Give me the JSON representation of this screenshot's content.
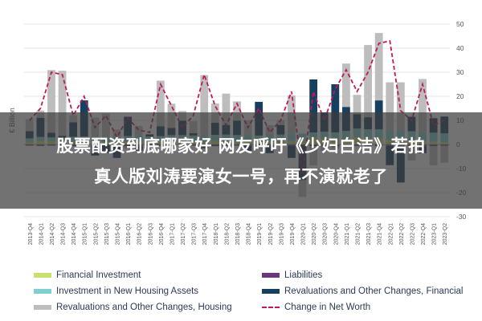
{
  "chart_data": {
    "type": "bar",
    "ylabel": "€ Billion",
    "ylim": [
      -30,
      50
    ],
    "yticks": [
      50,
      40,
      30,
      20,
      10,
      0,
      -10,
      -20,
      -30
    ],
    "categories": [
      "2013-Q4",
      "2014-Q1",
      "2014-Q2",
      "2014-Q3",
      "2014-Q4",
      "2015-Q1",
      "2015-Q2",
      "2015-Q3",
      "2015-Q4",
      "2016-Q1",
      "2016-Q2",
      "2016-Q3",
      "2016-Q4",
      "2017-Q1",
      "2017-Q2",
      "2017-Q3",
      "2017-Q4",
      "2018-Q1",
      "2018-Q2",
      "2018-Q3",
      "2018-Q4",
      "2019-Q1",
      "2019-Q2",
      "2019-Q3",
      "2019-Q4",
      "2020-Q1",
      "2020-Q2",
      "2020-Q3",
      "2020-Q4",
      "2021-Q1",
      "2021-Q2",
      "2021-Q3",
      "2021-Q4",
      "2022-Q1",
      "2022-Q2",
      "2022-Q3",
      "2022-Q4",
      "2023-Q1",
      "2023-Q2"
    ],
    "series": [
      {
        "name": "Financial Investment",
        "color": "#c8e06e",
        "values": [
          1,
          1.5,
          1.2,
          1,
          1.4,
          1.6,
          1.3,
          1,
          1.2,
          1.4,
          1.5,
          1.3,
          1.2,
          1.5,
          1.4,
          1.3,
          1.2,
          1.5,
          1.4,
          1.3,
          1.2,
          1,
          1.1,
          1.3,
          1.4,
          2,
          3,
          2.5,
          1.8,
          2.2,
          3,
          2.8,
          2.5,
          1.8,
          1.6,
          1.4,
          1.2,
          1.1,
          1
        ]
      },
      {
        "name": "Liabilities",
        "color": "#6b3580",
        "values": [
          -0.5,
          -0.6,
          -0.5,
          -0.6,
          -0.7,
          -0.5,
          -0.6,
          -0.5,
          -0.6,
          -0.7,
          -0.6,
          -0.5,
          -0.6,
          -0.7,
          -0.6,
          -0.5,
          -0.6,
          -0.7,
          -0.6,
          -0.5,
          -0.6,
          -0.7,
          -0.6,
          -0.5,
          -0.6,
          -0.8,
          -0.7,
          -0.6,
          -0.8,
          -0.7,
          -0.6,
          -0.8,
          -0.7,
          -0.6,
          -0.8,
          -0.7,
          -0.6,
          -0.7,
          -0.6
        ]
      },
      {
        "name": "Investment in New Housing Assets",
        "color": "#7ecfd0",
        "values": [
          1.5,
          1.6,
          1.7,
          1.6,
          1.8,
          1.7,
          1.9,
          1.8,
          2,
          2.1,
          2.2,
          2,
          2.3,
          2.4,
          2.5,
          2.4,
          2.6,
          2.5,
          2.7,
          2.6,
          2.8,
          2.7,
          2.9,
          2.8,
          3,
          2.5,
          2,
          2.8,
          3.2,
          3.4,
          3.6,
          3.5,
          3.8,
          4,
          4.2,
          4.1,
          4,
          3.8,
          3.6
        ]
      },
      {
        "name": "Revaluations and Other Changes, Financial",
        "color": "#173f5f",
        "values": [
          3,
          8,
          2,
          1,
          6,
          15,
          -4,
          -3,
          -5,
          8,
          -2,
          1,
          4,
          3,
          6,
          1,
          -1,
          5,
          4,
          6,
          -2,
          14,
          -3,
          4,
          -5,
          -14,
          22,
          8,
          20,
          10,
          6,
          5,
          12,
          -8,
          -15,
          6,
          -3,
          6,
          7
        ]
      },
      {
        "name": "Revaluations and Other Changes, Housing",
        "color": "#bdbdbd",
        "values": [
          5,
          3,
          26,
          27,
          3,
          -2,
          8,
          10,
          3,
          -1,
          4,
          0,
          19,
          10,
          4,
          5,
          25,
          8,
          13,
          8,
          6,
          -1,
          4,
          2,
          16,
          -7,
          -8,
          -2,
          -1,
          18,
          8,
          30,
          28,
          20,
          20,
          -6,
          22,
          -8,
          -7
        ]
      },
      {
        "name": "Change in Net Worth",
        "color": "#c2185b",
        "values": [
          10,
          15,
          30,
          29,
          12,
          20,
          7,
          12,
          3,
          11,
          6,
          5,
          25,
          16,
          7,
          12,
          29,
          16,
          8,
          17,
          7,
          15,
          5,
          10,
          22,
          -12,
          22,
          10,
          23,
          31,
          22,
          30,
          42,
          43,
          14,
          10,
          25,
          8,
          10
        ]
      }
    ]
  },
  "legend": {
    "items": [
      {
        "label": "Financial Investment",
        "color": "#c8e06e"
      },
      {
        "label": "Investment in New Housing Assets",
        "color": "#7ecfd0"
      },
      {
        "label": "Revaluations and Other Changes, Housing",
        "color": "#bdbdbd"
      },
      {
        "label": "Liabilities",
        "color": "#6b3580"
      },
      {
        "label": "Revaluations and Other Changes, Financial",
        "color": "#173f5f"
      },
      {
        "label": "Change in Net Worth",
        "color": "#c2185b"
      }
    ]
  },
  "headline": {
    "line1": "股票配资到底哪家好 网友呼吁《少妇白洁》若拍",
    "line2": "真人版刘涛要演女一号，再不演就老了"
  }
}
